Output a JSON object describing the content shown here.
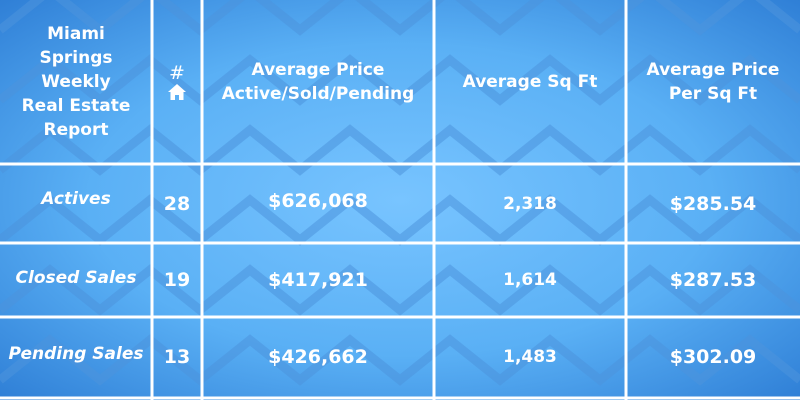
{
  "header": {
    "title_lines": [
      "Miami",
      "Springs",
      "Weekly",
      "Real Estate",
      "Report"
    ],
    "count_symbol": "#",
    "count_icon": "house-icon",
    "avg_price_lines": [
      "Average Price",
      "Active/Sold/Pending"
    ],
    "avg_sqft": "Average Sq Ft",
    "price_per_sqft_lines": [
      "Average Price",
      "Per Sq Ft"
    ]
  },
  "rows": [
    {
      "label": "Actives",
      "count": "28",
      "avg_price": "$626,068",
      "avg_sqft": "2,318",
      "price_per_sqft": "$285.54"
    },
    {
      "label": "Closed Sales",
      "count": "19",
      "avg_price": "$417,921",
      "avg_sqft": "1,614",
      "price_per_sqft": "$287.53"
    },
    {
      "label": "Pending Sales",
      "count": "13",
      "avg_price": "$426,662",
      "avg_sqft": "1,483",
      "price_per_sqft": "$302.09"
    }
  ],
  "colors": {
    "background": "#5ab0f5",
    "text": "#ffffff",
    "grid": "#ffffff"
  }
}
